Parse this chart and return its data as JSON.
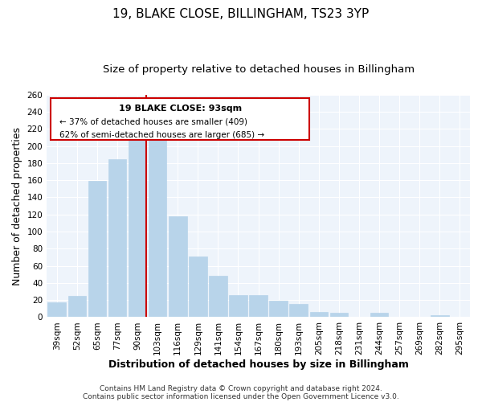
{
  "title": "19, BLAKE CLOSE, BILLINGHAM, TS23 3YP",
  "subtitle": "Size of property relative to detached houses in Billingham",
  "xlabel": "Distribution of detached houses by size in Billingham",
  "ylabel": "Number of detached properties",
  "categories": [
    "39sqm",
    "52sqm",
    "65sqm",
    "77sqm",
    "90sqm",
    "103sqm",
    "116sqm",
    "129sqm",
    "141sqm",
    "154sqm",
    "167sqm",
    "180sqm",
    "193sqm",
    "205sqm",
    "218sqm",
    "231sqm",
    "244sqm",
    "257sqm",
    "269sqm",
    "282sqm",
    "295sqm"
  ],
  "values": [
    17,
    25,
    159,
    185,
    210,
    215,
    118,
    71,
    48,
    26,
    26,
    19,
    15,
    6,
    5,
    0,
    5,
    0,
    0,
    2,
    0
  ],
  "bar_color": "#b8d4ea",
  "bar_edge_color": "#b8d4ea",
  "highlight_line_color": "#cc0000",
  "annotation_title": "19 BLAKE CLOSE: 93sqm",
  "annotation_line1": "← 37% of detached houses are smaller (409)",
  "annotation_line2": "62% of semi-detached houses are larger (685) →",
  "annotation_box_color": "#ffffff",
  "annotation_box_edge_color": "#cc0000",
  "ylim": [
    0,
    260
  ],
  "yticks": [
    0,
    20,
    40,
    60,
    80,
    100,
    120,
    140,
    160,
    180,
    200,
    220,
    240,
    260
  ],
  "footer1": "Contains HM Land Registry data © Crown copyright and database right 2024.",
  "footer2": "Contains public sector information licensed under the Open Government Licence v3.0.",
  "background_color": "#ffffff",
  "plot_bg_color": "#eef4fb",
  "grid_color": "#ffffff",
  "title_fontsize": 11,
  "subtitle_fontsize": 9.5,
  "axis_label_fontsize": 9,
  "tick_fontsize": 7.5,
  "footer_fontsize": 6.5
}
